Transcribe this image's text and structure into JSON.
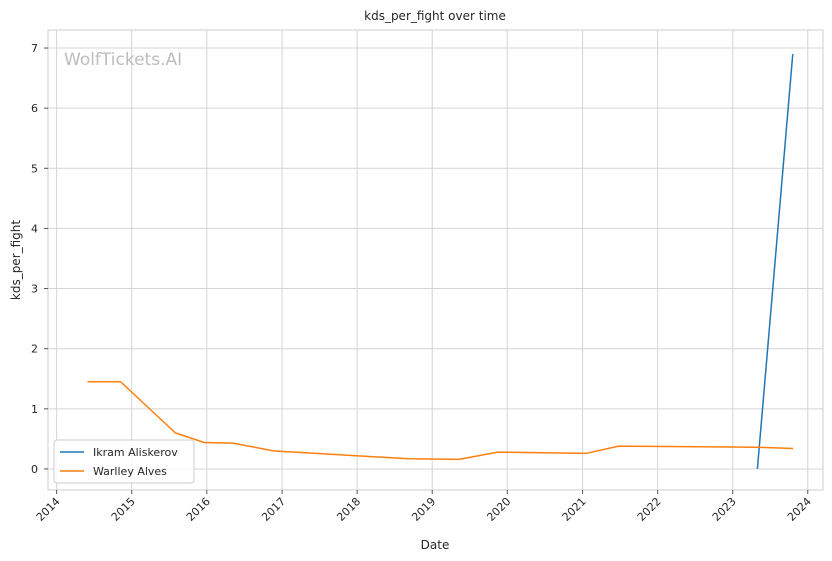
{
  "chart_data": {
    "type": "line",
    "title": "kds_per_fight over time",
    "xlabel": "Date",
    "ylabel": "kds_per_fight",
    "watermark": "WolfTickets.AI",
    "x_ticks": [
      "2014",
      "2015",
      "2016",
      "2017",
      "2018",
      "2019",
      "2020",
      "2021",
      "2022",
      "2023",
      "2024"
    ],
    "y_ticks": [
      0,
      1,
      2,
      3,
      4,
      5,
      6,
      7
    ],
    "xlim": [
      "2013-11-20",
      "2024-03-15"
    ],
    "ylim": [
      -0.35,
      7.3
    ],
    "grid": true,
    "legend_position": "lower-left",
    "series": [
      {
        "name": "Ikram Aliskerov",
        "color": "#1f77b4",
        "points": [
          {
            "x": "2023-05-01",
            "y": 0.0
          },
          {
            "x": "2023-10-20",
            "y": 6.9
          }
        ]
      },
      {
        "name": "Warlley Alves",
        "color": "#ff7f0e",
        "points": [
          {
            "x": "2014-05-31",
            "y": 1.45
          },
          {
            "x": "2014-11-08",
            "y": 1.45
          },
          {
            "x": "2015-08-01",
            "y": 0.6
          },
          {
            "x": "2015-12-19",
            "y": 0.44
          },
          {
            "x": "2016-05-08",
            "y": 0.43
          },
          {
            "x": "2016-11-19",
            "y": 0.3
          },
          {
            "x": "2018-09-08",
            "y": 0.17
          },
          {
            "x": "2019-05-11",
            "y": 0.16
          },
          {
            "x": "2019-11-16",
            "y": 0.28
          },
          {
            "x": "2021-01-20",
            "y": 0.26
          },
          {
            "x": "2021-06-26",
            "y": 0.38
          },
          {
            "x": "2023-05-06",
            "y": 0.36
          },
          {
            "x": "2023-10-21",
            "y": 0.34
          }
        ]
      }
    ]
  }
}
